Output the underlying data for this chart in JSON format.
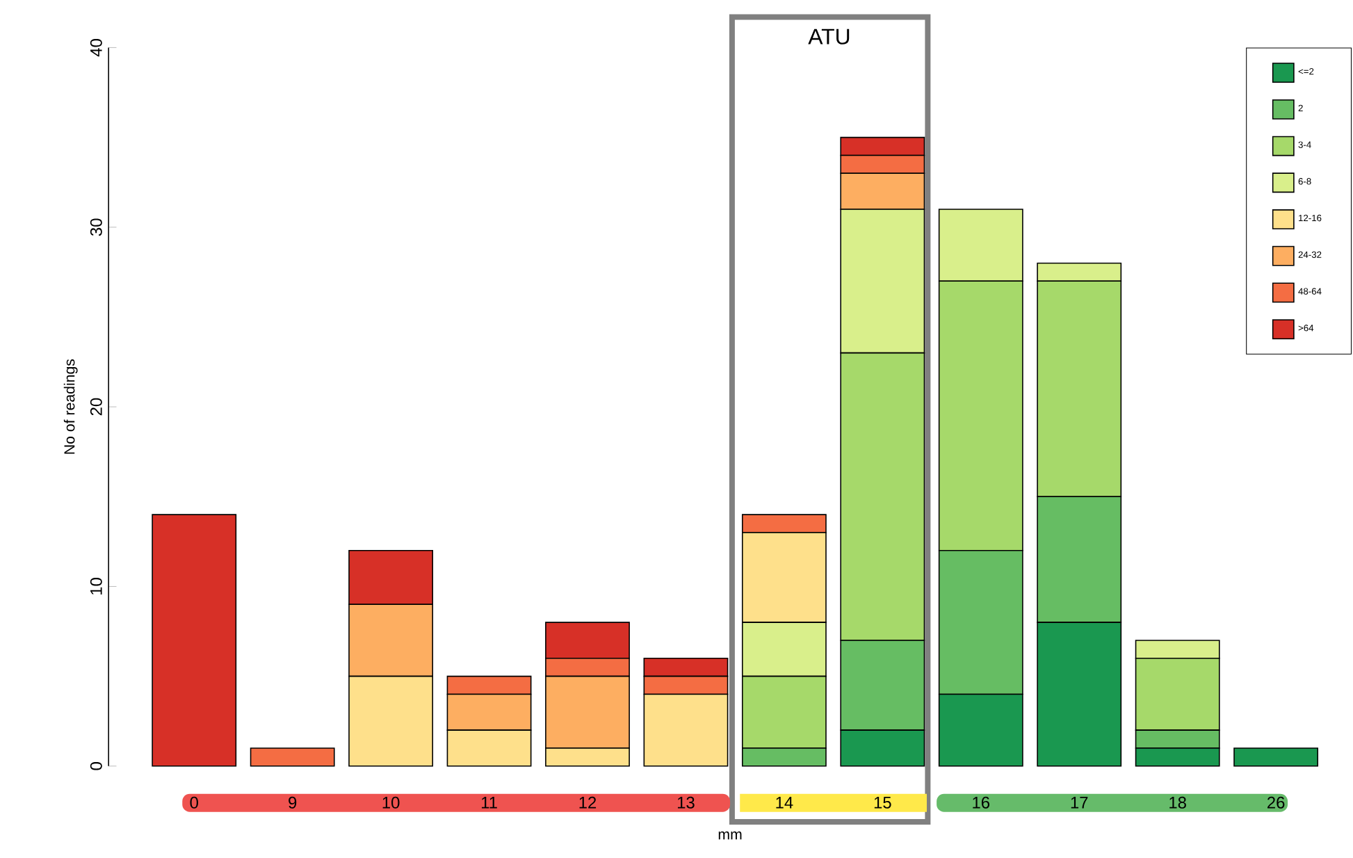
{
  "chart_data": {
    "type": "bar",
    "stacked": true,
    "xlabel": "mm",
    "ylabel": "No of readings",
    "categories": [
      "0",
      "9",
      "10",
      "11",
      "12",
      "13",
      "14",
      "15",
      "16",
      "17",
      "18",
      "26"
    ],
    "ylim": [
      0,
      40
    ],
    "yticks": [
      0,
      10,
      20,
      30,
      40
    ],
    "legend": "top right",
    "annotations": [
      "ATU"
    ],
    "series": [
      {
        "name": "<=2",
        "color": "#1a9850",
        "values": [
          0,
          0,
          0,
          0,
          0,
          0,
          0,
          2,
          4,
          8,
          1,
          1
        ]
      },
      {
        "name": "2",
        "color": "#66bd63",
        "values": [
          0,
          0,
          0,
          0,
          0,
          0,
          1,
          5,
          8,
          7,
          1,
          0
        ]
      },
      {
        "name": "3-4",
        "color": "#a6d96a",
        "values": [
          0,
          0,
          0,
          0,
          0,
          0,
          4,
          16,
          15,
          12,
          4,
          0
        ]
      },
      {
        "name": "6-8",
        "color": "#d9ef8b",
        "values": [
          0,
          0,
          0,
          0,
          0,
          0,
          3,
          8,
          4,
          1,
          1,
          0
        ]
      },
      {
        "name": "12-16",
        "color": "#fee08b",
        "values": [
          0,
          0,
          5,
          2,
          1,
          4,
          5,
          0,
          0,
          0,
          0,
          0
        ]
      },
      {
        "name": "24-32",
        "color": "#fdae61",
        "values": [
          0,
          0,
          4,
          2,
          4,
          0,
          0,
          2,
          0,
          0,
          0,
          0
        ]
      },
      {
        "name": "48-64",
        "color": "#f46d43",
        "values": [
          0,
          1,
          0,
          1,
          1,
          1,
          1,
          1,
          0,
          0,
          0,
          0
        ]
      },
      {
        "name": ">64",
        "color": "#d73027",
        "values": [
          14,
          0,
          3,
          0,
          2,
          1,
          0,
          1,
          0,
          0,
          0,
          0
        ]
      }
    ]
  }
}
